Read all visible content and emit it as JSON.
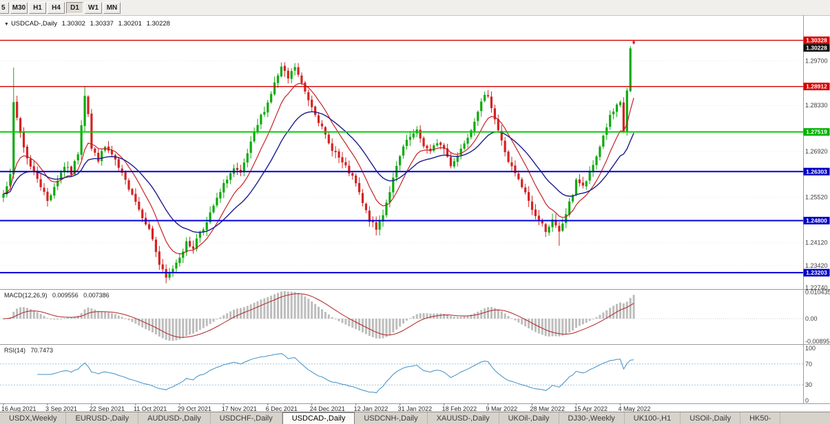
{
  "toolbar": {
    "periods": [
      {
        "label": "5",
        "active": false
      },
      {
        "label": "M30",
        "active": false
      },
      {
        "label": "H1",
        "active": false
      },
      {
        "label": "H4",
        "active": false
      },
      {
        "label": "D1",
        "active": true
      },
      {
        "label": "W1",
        "active": false
      },
      {
        "label": "MN",
        "active": false
      }
    ]
  },
  "chart_header": {
    "collapse_icon": "▼",
    "symbol": "USDCAD-,Daily",
    "open": "1.30302",
    "high": "1.30337",
    "low": "1.30201",
    "close": "1.30228"
  },
  "macd_panel": {
    "label": "MACD(12,26,9)",
    "main_value": "0.009556",
    "signal_value": "0.007386"
  },
  "rsi_panel": {
    "label": "RSI(14)",
    "value": "70.7473"
  },
  "tabs": [
    {
      "label": "USDX,Weekly",
      "active": false
    },
    {
      "label": "EURUSD-,Daily",
      "active": false
    },
    {
      "label": "AUDUSD-,Daily",
      "active": false
    },
    {
      "label": "USDCHF-,Daily",
      "active": false
    },
    {
      "label": "USDCAD-,Daily",
      "active": true
    },
    {
      "label": "USDCNH-,Daily",
      "active": false
    },
    {
      "label": "XAUUSD-,Daily",
      "active": false
    },
    {
      "label": "UKOil-,Daily",
      "active": false
    },
    {
      "label": "DJ30-,Weekly",
      "active": false
    },
    {
      "label": "UK100-,H1",
      "active": false
    },
    {
      "label": "USOil-,Daily",
      "active": false
    },
    {
      "label": "HK50-",
      "active": false
    }
  ],
  "chart_data": {
    "type": "candlestick",
    "symbol": "USDCAD",
    "timeframe": "Daily",
    "seed": 7,
    "num_candles": 187,
    "candles_per_label": 13,
    "price_range": [
      1.227,
      1.311
    ],
    "last_ohlc": {
      "open": 1.30302,
      "high": 1.30337,
      "low": 1.30201,
      "close": 1.30228
    },
    "gray_axis_labels": [
      "1.29700",
      "1.28330",
      "1.26920",
      "1.25520",
      "1.24120",
      "1.23420",
      "1.22740"
    ],
    "hlines": [
      {
        "price": 1.30328,
        "color": "#d40000",
        "width": 1.4,
        "badge": true
      },
      {
        "price": 1.28912,
        "color": "#d40000",
        "width": 1.4,
        "badge": true
      },
      {
        "price": 1.27519,
        "color": "#00cc00",
        "width": 2,
        "badge": true,
        "badge_color": "#00b000"
      },
      {
        "price": 1.26303,
        "color": "#0000d4",
        "width": 2,
        "badge": true,
        "badge_color": "#0000c0"
      },
      {
        "price": 1.248,
        "color": "#0000d4",
        "width": 2,
        "badge": true,
        "badge_color": "#0000c0"
      },
      {
        "price": 1.23203,
        "color": "#0000d4",
        "width": 2,
        "badge": true,
        "badge_color": "#0000c0"
      }
    ],
    "bid_badge": {
      "price": 1.30228,
      "label": "1.30228",
      "color": "#101010"
    },
    "date_labels": [
      "16 Aug 2021",
      "3 Sep 2021",
      "22 Sep 2021",
      "11 Oct 2021",
      "29 Oct 2021",
      "17 Nov 2021",
      "6 Dec 2021",
      "24 Dec 2021",
      "12 Jan 2022",
      "31 Jan 2022",
      "18 Feb 2022",
      "9 Mar 2022",
      "28 Mar 2022",
      "15 Apr 2022",
      "4 May 2022"
    ],
    "close_anchors": [
      [
        0,
        1.257
      ],
      [
        2,
        1.2615
      ],
      [
        3,
        1.284
      ],
      [
        4,
        1.2795
      ],
      [
        6,
        1.2705
      ],
      [
        8,
        1.2645
      ],
      [
        10,
        1.2612
      ],
      [
        13,
        1.254
      ],
      [
        15,
        1.2585
      ],
      [
        18,
        1.2648
      ],
      [
        20,
        1.2625
      ],
      [
        22,
        1.2688
      ],
      [
        24,
        1.2868
      ],
      [
        25,
        1.281
      ],
      [
        26,
        1.27
      ],
      [
        28,
        1.2668
      ],
      [
        30,
        1.2705
      ],
      [
        32,
        1.268
      ],
      [
        34,
        1.264
      ],
      [
        36,
        1.26
      ],
      [
        38,
        1.2565
      ],
      [
        40,
        1.2515
      ],
      [
        42,
        1.2475
      ],
      [
        44,
        1.2425
      ],
      [
        46,
        1.2345
      ],
      [
        48,
        1.2302
      ],
      [
        50,
        1.2335
      ],
      [
        52,
        1.2372
      ],
      [
        54,
        1.241
      ],
      [
        56,
        1.2398
      ],
      [
        58,
        1.2448
      ],
      [
        60,
        1.2472
      ],
      [
        62,
        1.2525
      ],
      [
        64,
        1.2565
      ],
      [
        66,
        1.2612
      ],
      [
        68,
        1.2638
      ],
      [
        70,
        1.262
      ],
      [
        72,
        1.2685
      ],
      [
        74,
        1.2745
      ],
      [
        76,
        1.28
      ],
      [
        78,
        1.2842
      ],
      [
        80,
        1.29
      ],
      [
        82,
        1.2948
      ],
      [
        84,
        1.2915
      ],
      [
        86,
        1.2952
      ],
      [
        88,
        1.2898
      ],
      [
        90,
        1.2852
      ],
      [
        92,
        1.2812
      ],
      [
        94,
        1.2762
      ],
      [
        96,
        1.2715
      ],
      [
        98,
        1.2688
      ],
      [
        100,
        1.2655
      ],
      [
        102,
        1.2628
      ],
      [
        104,
        1.2592
      ],
      [
        106,
        1.2532
      ],
      [
        108,
        1.2482
      ],
      [
        110,
        1.2452
      ],
      [
        112,
        1.2502
      ],
      [
        114,
        1.2572
      ],
      [
        116,
        1.2642
      ],
      [
        118,
        1.2705
      ],
      [
        120,
        1.2735
      ],
      [
        122,
        1.2752
      ],
      [
        124,
        1.2712
      ],
      [
        126,
        1.2688
      ],
      [
        128,
        1.2722
      ],
      [
        130,
        1.27
      ],
      [
        132,
        1.2652
      ],
      [
        134,
        1.268
      ],
      [
        136,
        1.2722
      ],
      [
        138,
        1.2762
      ],
      [
        140,
        1.282
      ],
      [
        142,
        1.2858
      ],
      [
        143,
        1.2868
      ],
      [
        145,
        1.2792
      ],
      [
        147,
        1.2722
      ],
      [
        149,
        1.2662
      ],
      [
        151,
        1.2622
      ],
      [
        153,
        1.2582
      ],
      [
        155,
        1.2542
      ],
      [
        156,
        1.2512
      ],
      [
        158,
        1.2482
      ],
      [
        160,
        1.2452
      ],
      [
        162,
        1.2478
      ],
      [
        164,
        1.2442
      ],
      [
        166,
        1.2502
      ],
      [
        168,
        1.2562
      ],
      [
        169,
        1.2608
      ],
      [
        171,
        1.2582
      ],
      [
        173,
        1.2622
      ],
      [
        175,
        1.2678
      ],
      [
        177,
        1.274
      ],
      [
        179,
        1.2798
      ],
      [
        181,
        1.2828
      ],
      [
        182,
        1.2838
      ],
      [
        183,
        1.2752
      ],
      [
        184,
        1.288
      ],
      [
        185,
        1.3005
      ],
      [
        186,
        1.30228
      ]
    ],
    "wick_overrides": [
      {
        "i": 3,
        "high": 1.2949
      },
      {
        "i": 24,
        "high": 1.2893
      },
      {
        "i": 48,
        "low": 1.2288
      },
      {
        "i": 82,
        "high": 1.2965
      },
      {
        "i": 86,
        "high": 1.2963
      },
      {
        "i": 164,
        "low": 1.2403
      },
      {
        "i": 185,
        "high": 1.3015
      }
    ],
    "ma": [
      {
        "period": 10,
        "color": "#c62222",
        "width": 1.2
      },
      {
        "period": 24,
        "color": "#1a1a8c",
        "width": 1.4
      }
    ],
    "macd": {
      "fast": 12,
      "slow": 26,
      "signal": 9,
      "hist_color": "#bdbdbd",
      "signal_color": "#b22222",
      "range": [
        -0.01,
        0.0116
      ],
      "axis": [
        {
          "v": 0.010435,
          "s": "0.010435"
        },
        {
          "v": 0,
          "s": "0.00"
        },
        {
          "v": -0.00895,
          "s": "-0.00895"
        }
      ]
    },
    "rsi": {
      "period": 14,
      "color": "#3f8fc4",
      "levels": [
        70,
        30
      ],
      "level_color": "#9fc2dd",
      "axis": [
        {
          "v": 100,
          "s": "100"
        },
        {
          "v": 70,
          "s": "70"
        },
        {
          "v": 30,
          "s": "30"
        },
        {
          "v": 0,
          "s": "0"
        }
      ]
    },
    "candle_up_color": "#0caa0c",
    "candle_down_color": "#d42222",
    "background": "#ffffff"
  }
}
